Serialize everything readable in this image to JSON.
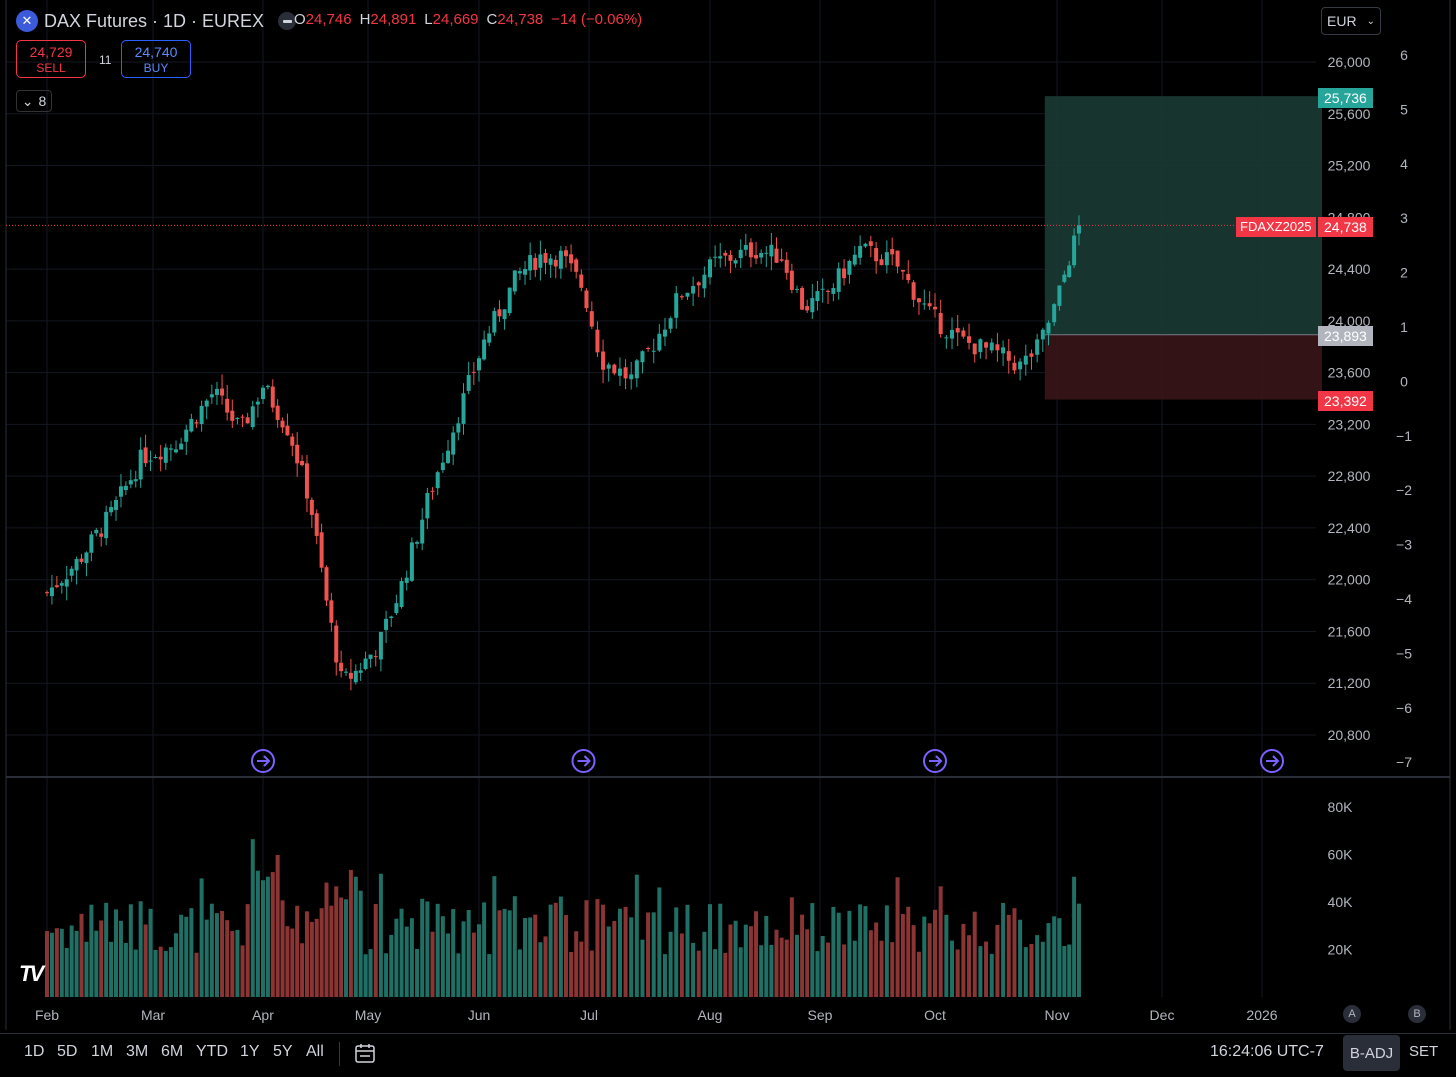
{
  "header": {
    "symbol": "DAX Futures · 1D · EUREX",
    "symbol_icon": "x-logo-icon",
    "open_label": "O",
    "open": "24,746",
    "high_label": "H",
    "high": "24,891",
    "low_label": "L",
    "low": "24,669",
    "close_label": "C",
    "close": "24,738",
    "change": "−14 (−0.06%)"
  },
  "trade": {
    "sell_price": "24,729",
    "sell_label": "SELL",
    "spread": "11",
    "buy_price": "24,740",
    "buy_label": "BUY"
  },
  "indicators_count": "8",
  "currency": "EUR",
  "price_labels": {
    "target": "25,736",
    "entry": "23,893",
    "stop": "23,392",
    "last": "24,738",
    "contract": "FDAXZ2025"
  },
  "colors": {
    "up": "#26a69a",
    "down": "#ef5350",
    "target_zone": "#1b3a33",
    "stop_zone": "#3a1518",
    "event_icon": "#7b61ff"
  },
  "timeframes": [
    "1D",
    "5D",
    "1M",
    "3M",
    "6M",
    "YTD",
    "1Y",
    "5Y",
    "All"
  ],
  "footer": {
    "clock": "16:24:06 UTC-7",
    "adjust": "B-ADJ",
    "session": "SET",
    "a_button": "A",
    "b_button": "B"
  },
  "chart_data": {
    "type": "candlestick",
    "x_ticks": [
      "Feb",
      "Mar",
      "Apr",
      "May",
      "Jun",
      "Jul",
      "Aug",
      "Sep",
      "Oct",
      "Nov",
      "Dec",
      "2026"
    ],
    "price_axis": [
      "26,000",
      "25,600",
      "25,200",
      "24,800",
      "24,400",
      "24,000",
      "23,600",
      "23,200",
      "22,800",
      "22,400",
      "22,000",
      "21,600",
      "21,200",
      "20,800"
    ],
    "percent_axis": [
      "6",
      "5",
      "4",
      "3",
      "2",
      "1",
      "0",
      "−1",
      "−2",
      "−3",
      "−4",
      "−5",
      "−6",
      "−7"
    ],
    "volume_axis": [
      "80K",
      "60K",
      "40K",
      "20K"
    ],
    "ylim": [
      20600,
      26400
    ],
    "volume_ylim": [
      0,
      85000
    ],
    "position": {
      "entry": 23893,
      "target": 25736,
      "stop": 23392,
      "start_month": 8.9,
      "end_month": 11.6
    },
    "event_markers_month": [
      2.0,
      4.95,
      8.0,
      11.1
    ],
    "anchors": [
      [
        0.0,
        21900
      ],
      [
        0.3,
        22150
      ],
      [
        0.6,
        22500
      ],
      [
        0.9,
        22950
      ],
      [
        1.2,
        23050
      ],
      [
        1.55,
        23450
      ],
      [
        1.8,
        23150
      ],
      [
        2.0,
        23500
      ],
      [
        2.25,
        23150
      ],
      [
        2.45,
        22600
      ],
      [
        2.6,
        21850
      ],
      [
        2.75,
        21200
      ],
      [
        2.9,
        21300
      ],
      [
        3.1,
        21500
      ],
      [
        3.3,
        21950
      ],
      [
        3.55,
        22650
      ],
      [
        3.8,
        23250
      ],
      [
        4.05,
        23850
      ],
      [
        4.35,
        24350
      ],
      [
        4.55,
        24500
      ],
      [
        4.75,
        24500
      ],
      [
        4.95,
        24250
      ],
      [
        5.1,
        23700
      ],
      [
        5.35,
        23550
      ],
      [
        5.55,
        23850
      ],
      [
        5.75,
        24200
      ],
      [
        6.05,
        24450
      ],
      [
        6.4,
        24550
      ],
      [
        6.65,
        24500
      ],
      [
        6.85,
        24100
      ],
      [
        7.05,
        24200
      ],
      [
        7.35,
        24550
      ],
      [
        7.65,
        24450
      ],
      [
        7.95,
        24050
      ],
      [
        8.2,
        23850
      ],
      [
        8.5,
        23750
      ],
      [
        8.7,
        23650
      ],
      [
        8.85,
        23800
      ],
      [
        9.0,
        24150
      ],
      [
        9.12,
        24500
      ],
      [
        9.22,
        24738
      ]
    ],
    "last_price": 24738
  }
}
